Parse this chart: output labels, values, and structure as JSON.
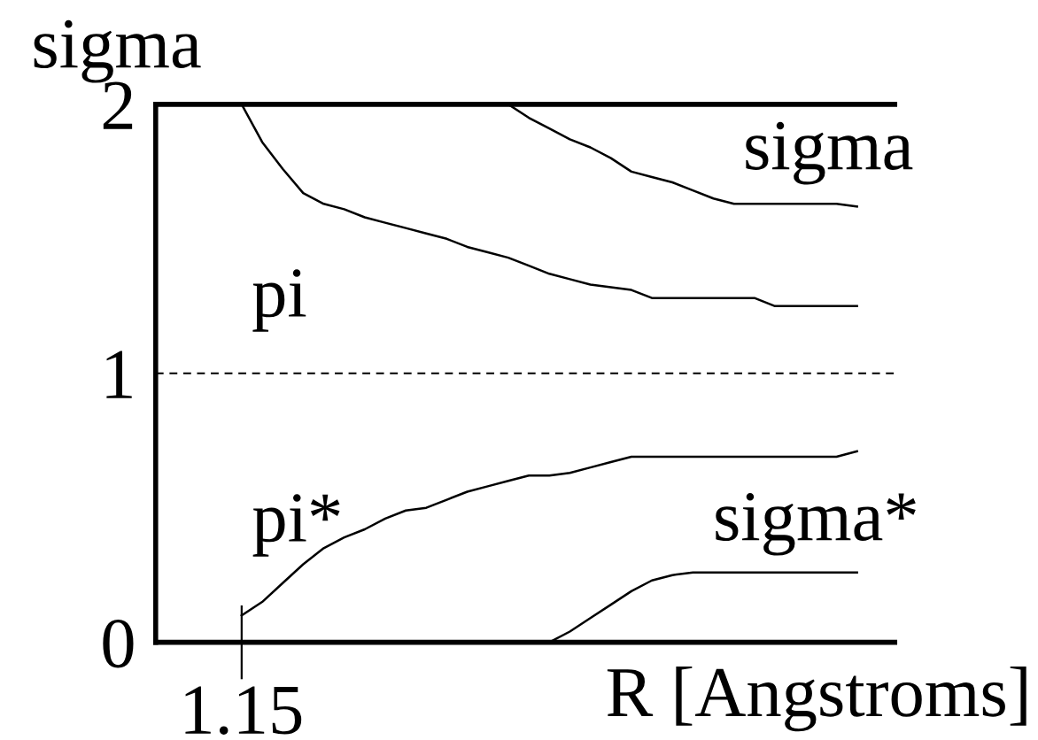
{
  "chart_data": {
    "type": "line",
    "categories": [
      "1.15",
      null,
      null,
      null,
      null,
      null,
      null,
      null,
      null,
      null,
      null,
      null,
      null,
      null,
      null,
      null,
      null,
      null,
      null,
      null,
      null,
      null,
      null,
      null,
      null,
      null,
      null,
      null,
      null,
      null,
      null
    ],
    "series": [
      {
        "name": "sigma",
        "color": "#000000",
        "values": [
          null,
          null,
          null,
          null,
          null,
          null,
          null,
          null,
          null,
          null,
          null,
          null,
          null,
          2.0,
          1.95,
          1.91,
          1.87,
          1.84,
          1.8,
          1.75,
          1.73,
          1.71,
          1.68,
          1.65,
          1.63,
          1.63,
          1.63,
          1.63,
          1.63,
          1.63,
          1.62
        ]
      },
      {
        "name": "pi",
        "color": "#000000",
        "values": [
          2.0,
          1.86,
          1.76,
          1.67,
          1.63,
          1.61,
          1.58,
          1.56,
          1.54,
          1.52,
          1.5,
          1.47,
          1.45,
          1.43,
          1.4,
          1.37,
          1.35,
          1.33,
          1.32,
          1.31,
          1.28,
          1.28,
          1.28,
          1.28,
          1.28,
          1.28,
          1.25,
          1.25,
          1.25,
          1.25,
          1.25
        ]
      },
      {
        "name": "pi*",
        "color": "#000000",
        "values": [
          0.1,
          0.15,
          0.22,
          0.29,
          0.35,
          0.39,
          0.42,
          0.46,
          0.49,
          0.5,
          0.53,
          0.56,
          0.58,
          0.6,
          0.62,
          0.62,
          0.63,
          0.65,
          0.67,
          0.69,
          0.69,
          0.69,
          0.69,
          0.69,
          0.69,
          0.69,
          0.69,
          0.69,
          0.69,
          0.69,
          0.71
        ]
      },
      {
        "name": "sigma*",
        "color": "#000000",
        "values": [
          null,
          null,
          null,
          null,
          null,
          null,
          null,
          null,
          null,
          null,
          null,
          null,
          null,
          null,
          null,
          0.0,
          0.04,
          0.09,
          0.14,
          0.19,
          0.23,
          0.25,
          0.26,
          0.26,
          0.26,
          0.26,
          0.26,
          0.26,
          0.26,
          0.26,
          0.26
        ]
      }
    ],
    "xlabel": "R [Angstroms]",
    "ylabel": "sigma",
    "ylim": [
      0,
      2
    ],
    "yticks": [
      0,
      1,
      2
    ],
    "ref_lines": [
      {
        "axis": "y",
        "value": 1,
        "color": "#000000",
        "line_style": "dashed"
      }
    ],
    "grid": false,
    "legend": false
  }
}
